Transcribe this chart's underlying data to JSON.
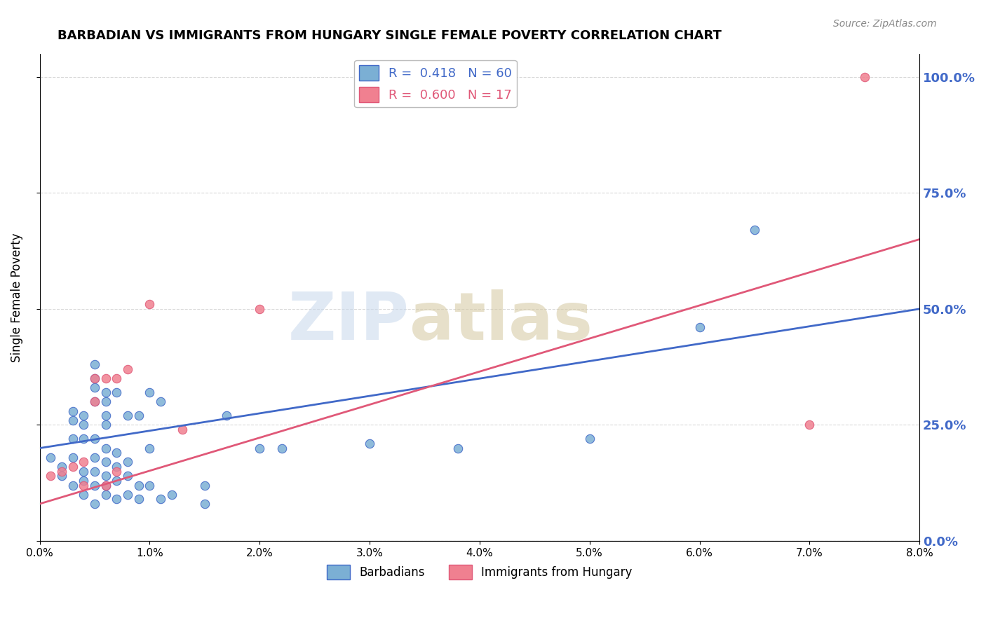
{
  "title": "BARBADIAN VS IMMIGRANTS FROM HUNGARY SINGLE FEMALE POVERTY CORRELATION CHART",
  "source": "Source: ZipAtlas.com",
  "ylabel": "Single Female Poverty",
  "xlim": [
    0.0,
    0.08
  ],
  "ylim": [
    0.0,
    1.05
  ],
  "barbadians_color": "#7bafd4",
  "hungary_color": "#f08090",
  "trend_blue": "#4169c8",
  "trend_pink": "#e05878",
  "blue_scatter": [
    [
      0.001,
      0.18
    ],
    [
      0.002,
      0.14
    ],
    [
      0.002,
      0.16
    ],
    [
      0.003,
      0.12
    ],
    [
      0.003,
      0.18
    ],
    [
      0.003,
      0.22
    ],
    [
      0.003,
      0.26
    ],
    [
      0.003,
      0.28
    ],
    [
      0.004,
      0.1
    ],
    [
      0.004,
      0.13
    ],
    [
      0.004,
      0.15
    ],
    [
      0.004,
      0.22
    ],
    [
      0.004,
      0.25
    ],
    [
      0.004,
      0.27
    ],
    [
      0.005,
      0.08
    ],
    [
      0.005,
      0.12
    ],
    [
      0.005,
      0.15
    ],
    [
      0.005,
      0.18
    ],
    [
      0.005,
      0.22
    ],
    [
      0.005,
      0.3
    ],
    [
      0.005,
      0.33
    ],
    [
      0.005,
      0.35
    ],
    [
      0.005,
      0.38
    ],
    [
      0.006,
      0.1
    ],
    [
      0.006,
      0.12
    ],
    [
      0.006,
      0.14
    ],
    [
      0.006,
      0.17
    ],
    [
      0.006,
      0.2
    ],
    [
      0.006,
      0.25
    ],
    [
      0.006,
      0.27
    ],
    [
      0.006,
      0.3
    ],
    [
      0.006,
      0.32
    ],
    [
      0.007,
      0.09
    ],
    [
      0.007,
      0.13
    ],
    [
      0.007,
      0.16
    ],
    [
      0.007,
      0.19
    ],
    [
      0.007,
      0.32
    ],
    [
      0.008,
      0.1
    ],
    [
      0.008,
      0.14
    ],
    [
      0.008,
      0.17
    ],
    [
      0.008,
      0.27
    ],
    [
      0.009,
      0.09
    ],
    [
      0.009,
      0.12
    ],
    [
      0.009,
      0.27
    ],
    [
      0.01,
      0.12
    ],
    [
      0.01,
      0.2
    ],
    [
      0.01,
      0.32
    ],
    [
      0.011,
      0.09
    ],
    [
      0.011,
      0.3
    ],
    [
      0.012,
      0.1
    ],
    [
      0.015,
      0.08
    ],
    [
      0.015,
      0.12
    ],
    [
      0.017,
      0.27
    ],
    [
      0.02,
      0.2
    ],
    [
      0.022,
      0.2
    ],
    [
      0.03,
      0.21
    ],
    [
      0.038,
      0.2
    ],
    [
      0.05,
      0.22
    ],
    [
      0.06,
      0.46
    ],
    [
      0.065,
      0.67
    ]
  ],
  "pink_scatter": [
    [
      0.001,
      0.14
    ],
    [
      0.002,
      0.15
    ],
    [
      0.003,
      0.16
    ],
    [
      0.004,
      0.12
    ],
    [
      0.004,
      0.17
    ],
    [
      0.005,
      0.3
    ],
    [
      0.005,
      0.35
    ],
    [
      0.006,
      0.12
    ],
    [
      0.006,
      0.35
    ],
    [
      0.007,
      0.15
    ],
    [
      0.007,
      0.35
    ],
    [
      0.008,
      0.37
    ],
    [
      0.01,
      0.51
    ],
    [
      0.013,
      0.24
    ],
    [
      0.02,
      0.5
    ],
    [
      0.07,
      0.25
    ],
    [
      0.075,
      1.0
    ]
  ],
  "blue_trend_x": [
    0.0,
    0.08
  ],
  "blue_trend_y": [
    0.2,
    0.5
  ],
  "pink_trend_x": [
    0.0,
    0.08
  ],
  "pink_trend_y": [
    0.08,
    0.65
  ],
  "yticks": [
    0.0,
    0.25,
    0.5,
    0.75,
    1.0
  ],
  "xticks": [
    0.0,
    0.01,
    0.02,
    0.03,
    0.04,
    0.05,
    0.06,
    0.07,
    0.08
  ],
  "grid_color": "#d0d0d0",
  "background_color": "#ffffff"
}
